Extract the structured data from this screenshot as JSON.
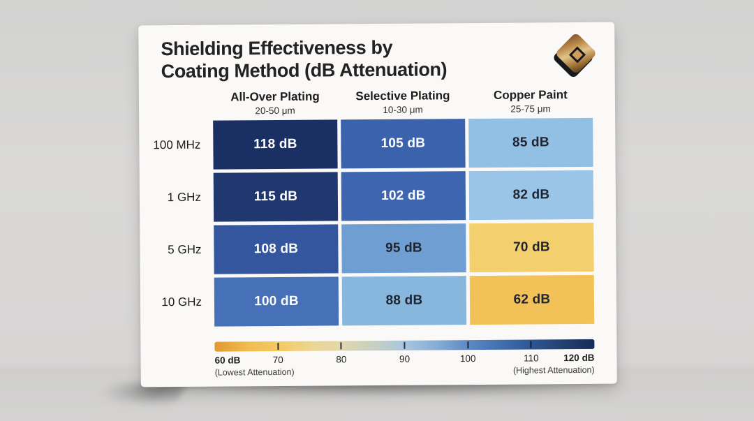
{
  "card": {
    "title_lines": [
      "Shielding Effectiveness by",
      "Coating Method (dB Attenuation)"
    ]
  },
  "chart_data": {
    "type": "heatmap",
    "title": "Shielding Effectiveness by Coating Method (dB Attenuation)",
    "unit": "dB",
    "columns": [
      {
        "label": "All-Over Plating",
        "range": "20-50 μm"
      },
      {
        "label": "Selective Plating",
        "range": "10-30 μm"
      },
      {
        "label": "Copper Paint",
        "range": "25-75 μm"
      }
    ],
    "row_labels": [
      "100 MHz",
      "1 GHz",
      "5 GHz",
      "10 GHz"
    ],
    "values": [
      [
        118,
        105,
        85
      ],
      [
        115,
        102,
        82
      ],
      [
        108,
        95,
        70
      ],
      [
        100,
        88,
        62
      ]
    ],
    "cell_colors": [
      [
        "#1a2f63",
        "#3a62ad",
        "#92bfe4"
      ],
      [
        "#20386f",
        "#3e66b0",
        "#9ac5e8"
      ],
      [
        "#33569f",
        "#6f9ed2",
        "#f4cf6d"
      ],
      [
        "#4670b8",
        "#88b7de",
        "#f2c259"
      ]
    ],
    "cell_text_colors": [
      [
        "#ffffff",
        "#ffffff",
        "#1e2430"
      ],
      [
        "#ffffff",
        "#ffffff",
        "#1e2430"
      ],
      [
        "#ffffff",
        "#1e2430",
        "#1e2430"
      ],
      [
        "#ffffff",
        "#1e2430",
        "#1e2430"
      ]
    ],
    "colorbar": {
      "range": [
        60,
        120
      ],
      "ticks": [
        70,
        80,
        90,
        100,
        110
      ],
      "min_label": "60 dB",
      "max_label": "120 dB",
      "min_caption": "(Lowest Attenuation)",
      "max_caption": "(Highest Attenuation)",
      "gradient_stops": [
        [
          "#e1992f",
          0
        ],
        [
          "#f0bd52",
          9
        ],
        [
          "#f3ca63",
          17
        ],
        [
          "#ecd694",
          26
        ],
        [
          "#e2d8aa",
          33
        ],
        [
          "#c6cfc4",
          42
        ],
        [
          "#a9c6e0",
          50
        ],
        [
          "#84abd4",
          59
        ],
        [
          "#5c88c5",
          67
        ],
        [
          "#3f6cae",
          76
        ],
        [
          "#2f5795",
          83
        ],
        [
          "#22406f",
          92
        ],
        [
          "#172c55",
          100
        ]
      ]
    }
  }
}
